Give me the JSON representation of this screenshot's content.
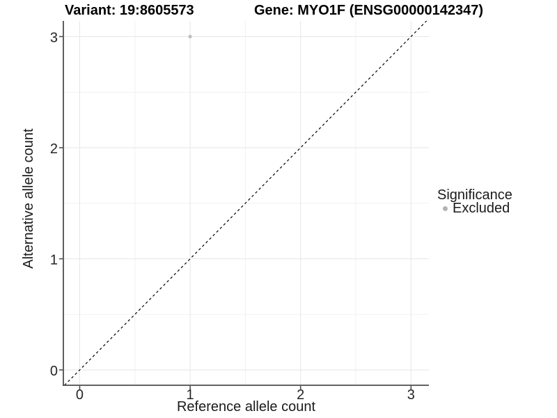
{
  "chart_data": {
    "type": "scatter",
    "title_left": "Variant: 19:8605573",
    "title_right": "Gene: MYO1F (ENSG00000142347)",
    "xlabel": "Reference allele count",
    "ylabel": "Alternative allele count",
    "x_ticks": [
      0,
      1,
      2,
      3
    ],
    "y_ticks": [
      0,
      1,
      2,
      3
    ],
    "xlim": [
      -0.148,
      3.162
    ],
    "ylim": [
      -0.138,
      3.141
    ],
    "grid": "major at integers and minor at halves, light grey on white",
    "series": [
      {
        "name": "Excluded",
        "color": "#bfbfbf",
        "points": [
          {
            "x": 1,
            "y": 3
          }
        ]
      }
    ],
    "identity_line": {
      "style": "dashed",
      "color": "#000000"
    },
    "legend": {
      "title": "Significance",
      "position": "right",
      "items": [
        {
          "label": "Excluded",
          "color": "#b3b3b3"
        }
      ]
    }
  },
  "colors": {
    "grid_major": "#e6e6e6",
    "grid_minor": "#f1f1f1",
    "axis_line": "#4d4d4d",
    "tick_text": "#262626",
    "title_text": "#000000"
  }
}
